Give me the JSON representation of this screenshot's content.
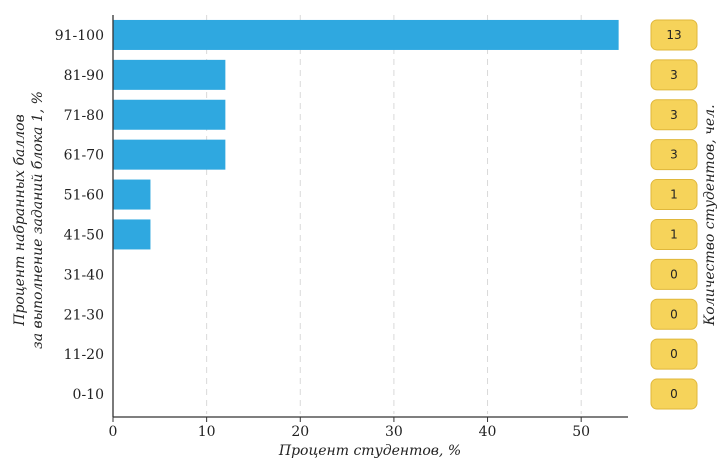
{
  "chart_data": {
    "type": "bar",
    "orientation": "horizontal",
    "categories": [
      "91-100",
      "81-90",
      "71-80",
      "61-70",
      "51-60",
      "41-50",
      "31-40",
      "21-30",
      "11-20",
      "0-10"
    ],
    "values": [
      54,
      12,
      12,
      12,
      4,
      4,
      0,
      0,
      0,
      0
    ],
    "counts": [
      13,
      3,
      3,
      3,
      1,
      1,
      0,
      0,
      0,
      0
    ],
    "xlabel": "Процент студентов, %",
    "ylabel_line1": "Процент набранных баллов",
    "ylabel_line2": "за выполнение заданий блока 1, %",
    "right_label": "Количество студентов, чел.",
    "xlim": [
      0,
      55
    ],
    "xticks": [
      0,
      10,
      20,
      30,
      40,
      50
    ],
    "grid": "vertical dashed",
    "colors": {
      "bar": "#2fa8e0",
      "badge_fill": "#f6d35a",
      "badge_stroke": "#e0b73a",
      "grid": "#d9d9d9",
      "axis": "#333333"
    }
  }
}
